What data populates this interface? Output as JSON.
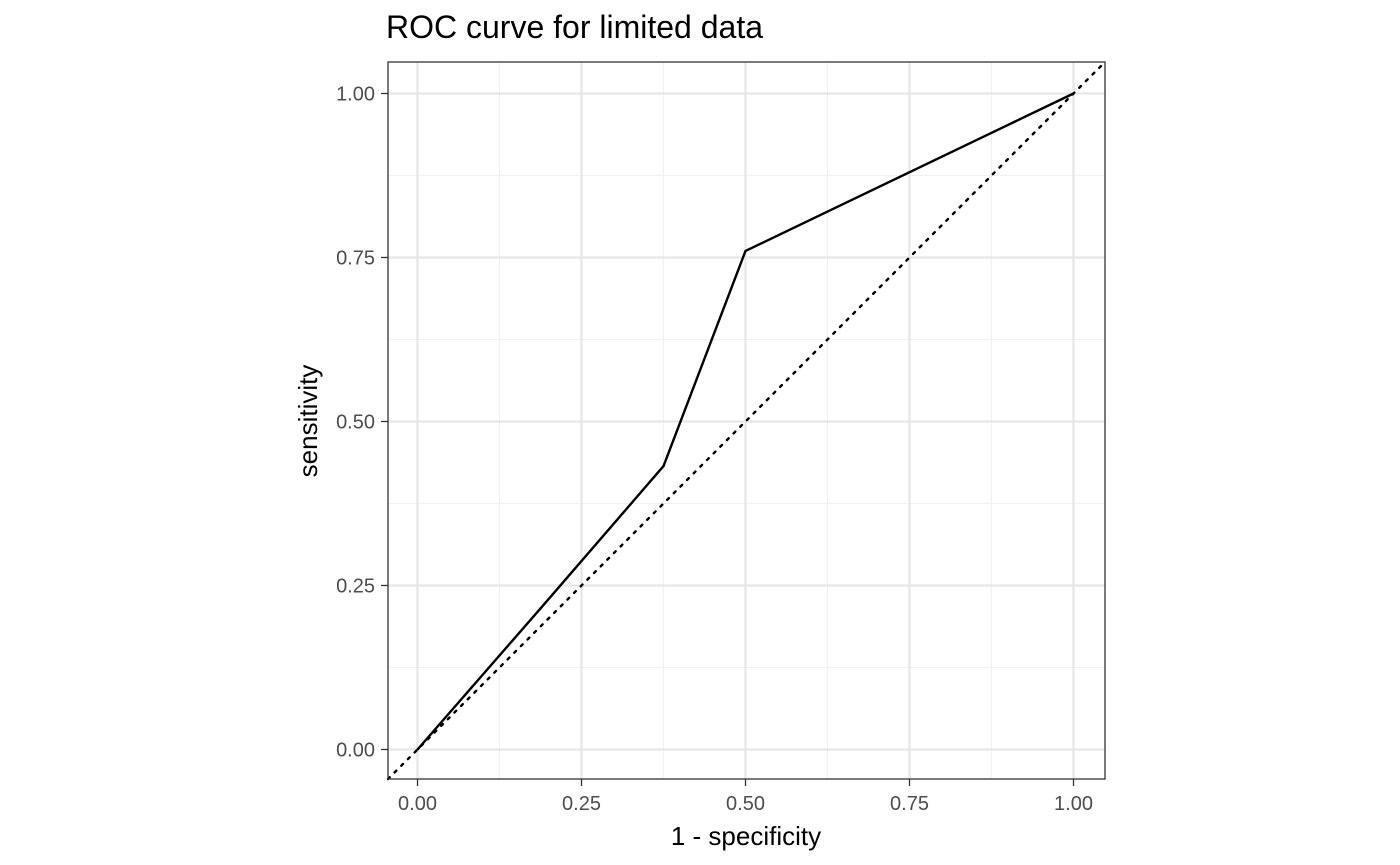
{
  "chart_data": {
    "type": "line",
    "title": "ROC curve for limited data",
    "xlabel": "1 - specificity",
    "ylabel": "sensitivity",
    "xlim": [
      -0.045,
      1.048
    ],
    "ylim": [
      -0.045,
      1.048
    ],
    "x_ticks": [
      "0.00",
      "0.25",
      "0.50",
      "0.75",
      "1.00"
    ],
    "y_ticks": [
      "0.00",
      "0.25",
      "0.50",
      "0.75",
      "1.00"
    ],
    "x_tick_values": [
      0,
      0.25,
      0.5,
      0.75,
      1.0
    ],
    "y_tick_values": [
      0,
      0.25,
      0.5,
      0.75,
      1.0
    ],
    "minor_breaks": [
      0.125,
      0.375,
      0.625,
      0.875
    ],
    "grid": true,
    "reference_line": {
      "style": "dotted",
      "slope": 1,
      "intercept": 0
    },
    "series": [
      {
        "x": [
          0,
          0.1875,
          0.375,
          0.5,
          1.0
        ],
        "y": [
          0,
          0.215,
          0.432,
          0.76,
          1.0
        ]
      }
    ]
  }
}
